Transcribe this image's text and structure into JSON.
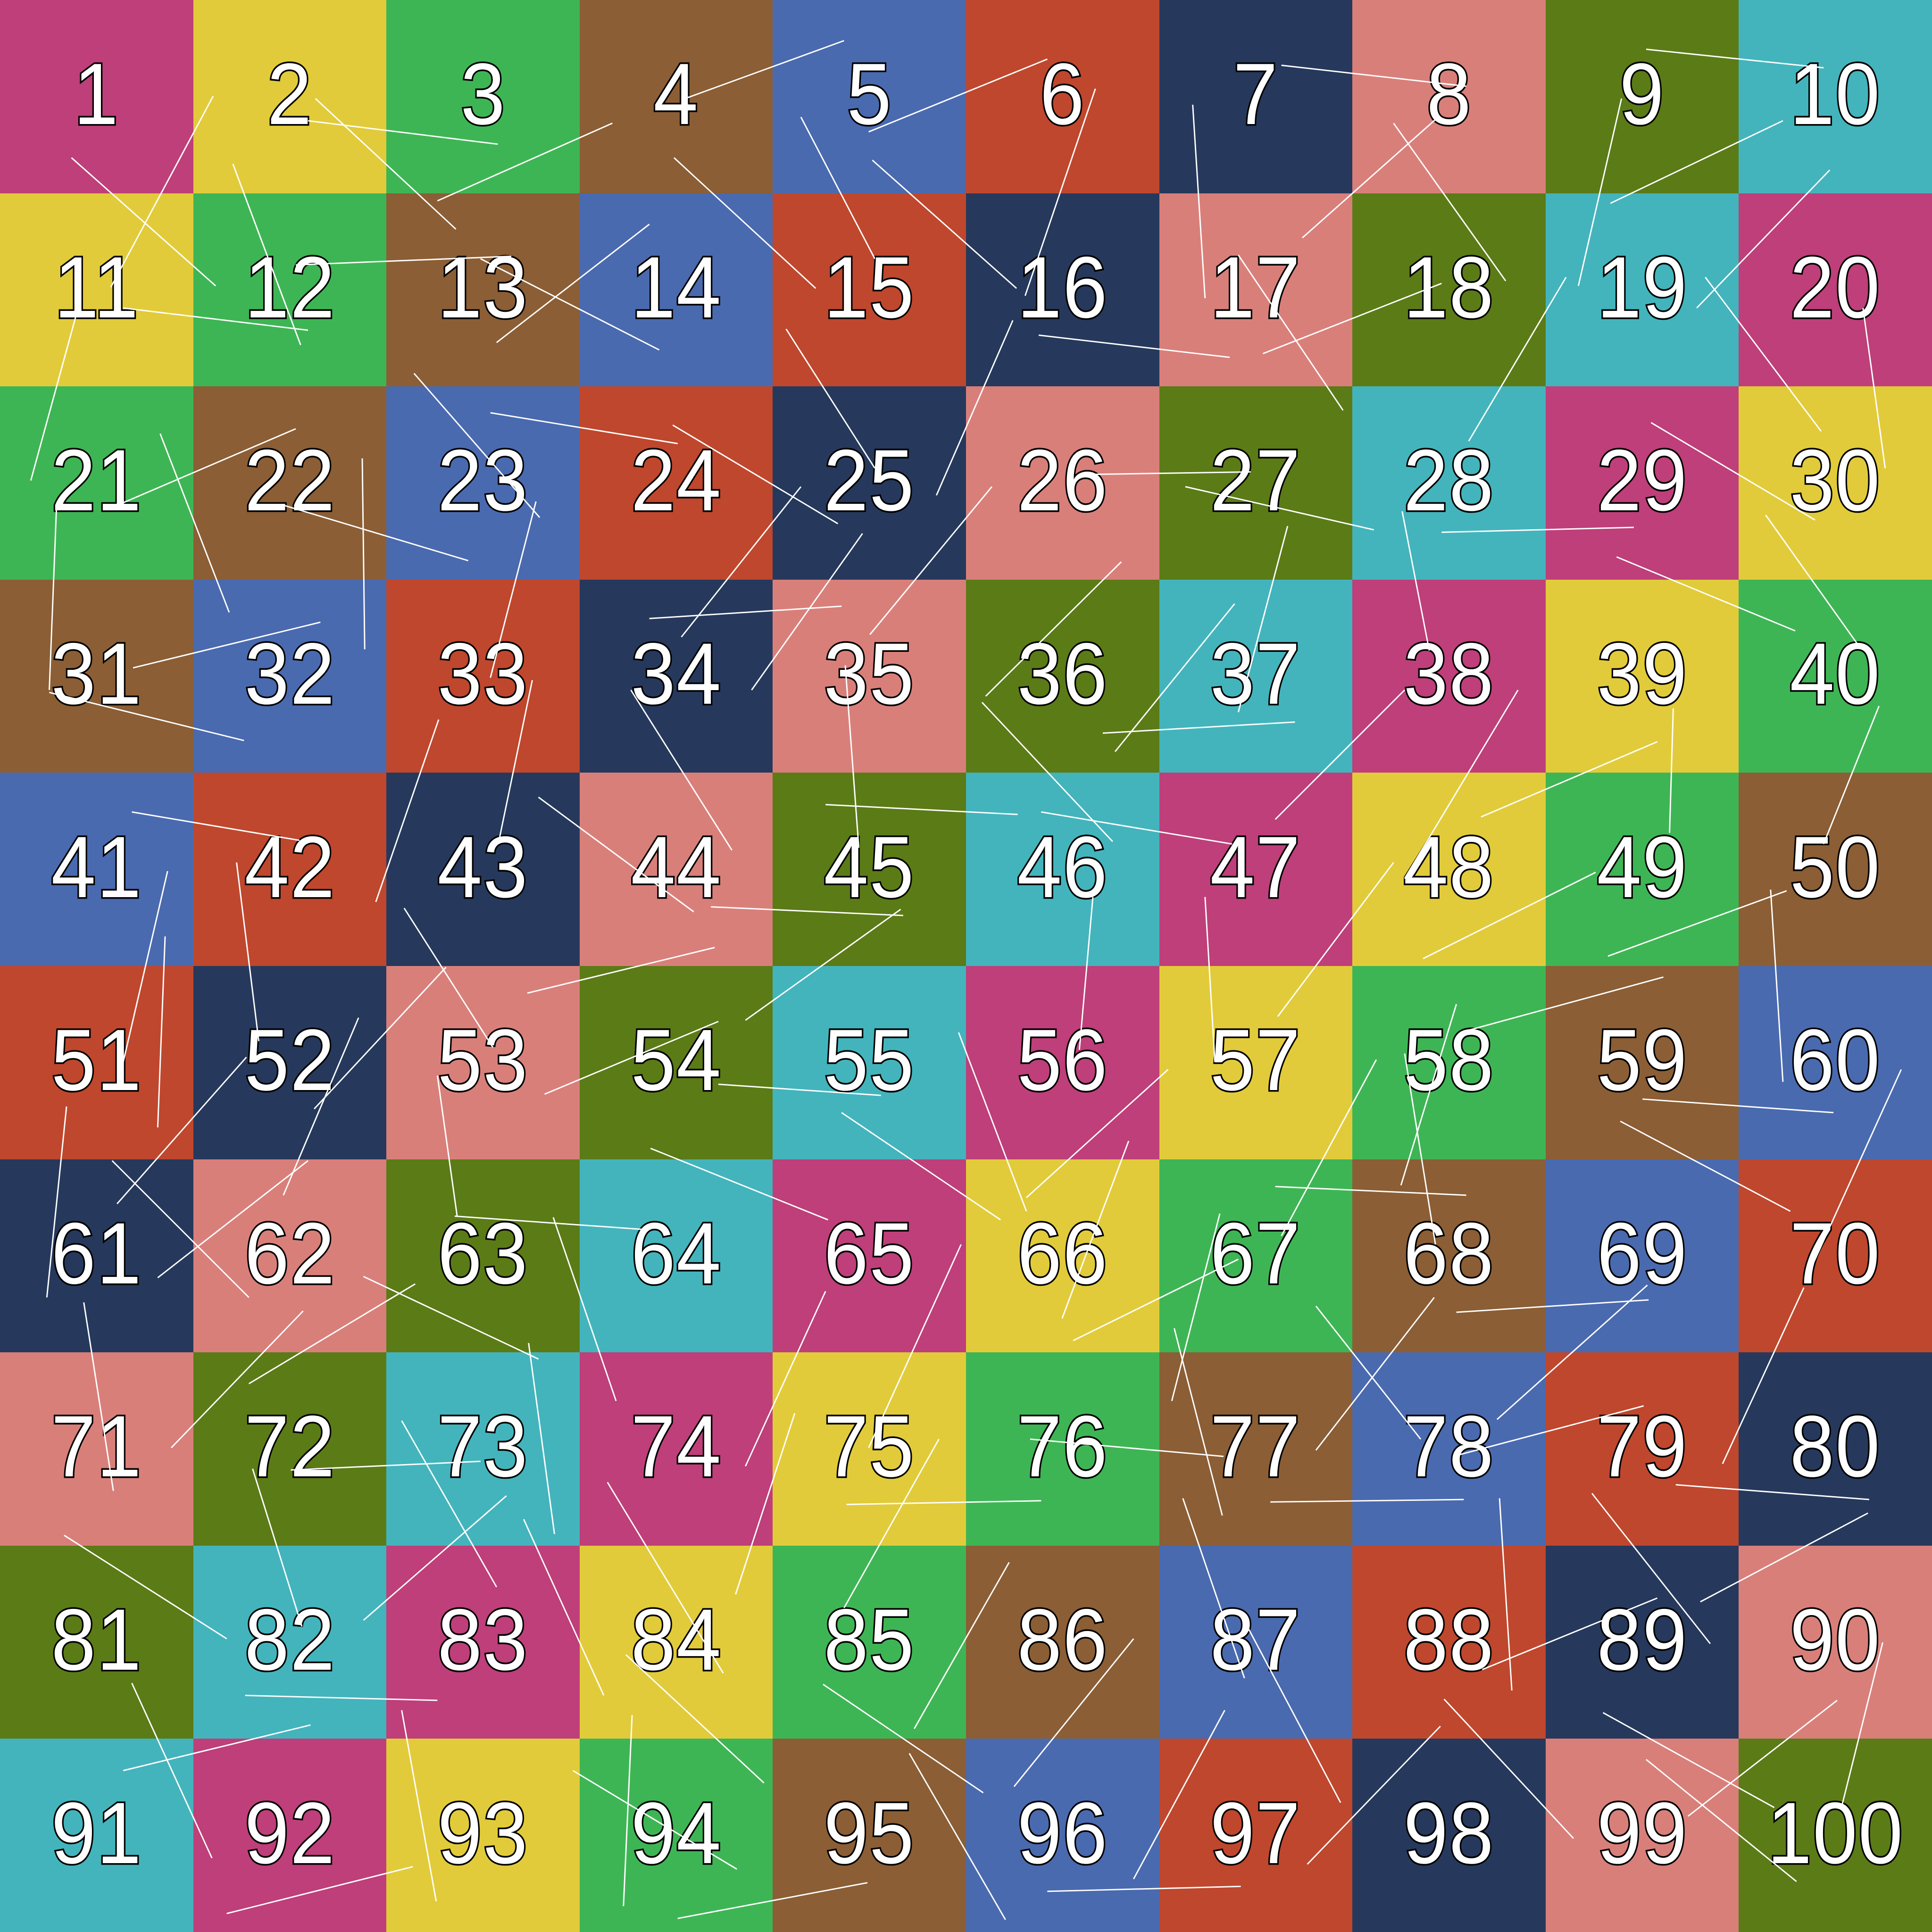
{
  "palette": {
    "magenta": "#BE3F79",
    "yellow": "#E2CB3A",
    "green": "#3EB554",
    "brown": "#8B5E35",
    "blue": "#4A6AAF",
    "red": "#BF472D",
    "navy": "#26395C",
    "salmon": "#D97F7A",
    "olive": "#5B7B17",
    "teal": "#43B4BC"
  },
  "line_color": "#FFFFFF",
  "cells": [
    {
      "label": "1",
      "color": "magenta"
    },
    {
      "label": "2",
      "color": "yellow"
    },
    {
      "label": "3",
      "color": "green"
    },
    {
      "label": "4",
      "color": "brown"
    },
    {
      "label": "5",
      "color": "blue"
    },
    {
      "label": "6",
      "color": "red"
    },
    {
      "label": "7",
      "color": "navy"
    },
    {
      "label": "8",
      "color": "salmon"
    },
    {
      "label": "9",
      "color": "olive"
    },
    {
      "label": "10",
      "color": "teal"
    },
    {
      "label": "11",
      "color": "yellow"
    },
    {
      "label": "12",
      "color": "green"
    },
    {
      "label": "13",
      "color": "brown"
    },
    {
      "label": "14",
      "color": "blue"
    },
    {
      "label": "15",
      "color": "red"
    },
    {
      "label": "16",
      "color": "navy"
    },
    {
      "label": "17",
      "color": "salmon"
    },
    {
      "label": "18",
      "color": "olive"
    },
    {
      "label": "19",
      "color": "teal"
    },
    {
      "label": "20",
      "color": "magenta"
    },
    {
      "label": "21",
      "color": "green"
    },
    {
      "label": "22",
      "color": "brown"
    },
    {
      "label": "23",
      "color": "blue"
    },
    {
      "label": "24",
      "color": "red"
    },
    {
      "label": "25",
      "color": "navy"
    },
    {
      "label": "26",
      "color": "salmon"
    },
    {
      "label": "27",
      "color": "olive"
    },
    {
      "label": "28",
      "color": "teal"
    },
    {
      "label": "29",
      "color": "magenta"
    },
    {
      "label": "30",
      "color": "yellow"
    },
    {
      "label": "31",
      "color": "brown"
    },
    {
      "label": "32",
      "color": "blue"
    },
    {
      "label": "33",
      "color": "red"
    },
    {
      "label": "34",
      "color": "navy"
    },
    {
      "label": "35",
      "color": "salmon"
    },
    {
      "label": "36",
      "color": "olive"
    },
    {
      "label": "37",
      "color": "teal"
    },
    {
      "label": "38",
      "color": "magenta"
    },
    {
      "label": "39",
      "color": "yellow"
    },
    {
      "label": "40",
      "color": "green"
    },
    {
      "label": "41",
      "color": "blue"
    },
    {
      "label": "42",
      "color": "red"
    },
    {
      "label": "43",
      "color": "navy"
    },
    {
      "label": "44",
      "color": "salmon"
    },
    {
      "label": "45",
      "color": "olive"
    },
    {
      "label": "46",
      "color": "teal"
    },
    {
      "label": "47",
      "color": "magenta"
    },
    {
      "label": "48",
      "color": "yellow"
    },
    {
      "label": "49",
      "color": "green"
    },
    {
      "label": "50",
      "color": "brown"
    },
    {
      "label": "51",
      "color": "red"
    },
    {
      "label": "52",
      "color": "navy"
    },
    {
      "label": "53",
      "color": "salmon"
    },
    {
      "label": "54",
      "color": "olive"
    },
    {
      "label": "55",
      "color": "teal"
    },
    {
      "label": "56",
      "color": "magenta"
    },
    {
      "label": "57",
      "color": "yellow"
    },
    {
      "label": "58",
      "color": "green"
    },
    {
      "label": "59",
      "color": "brown"
    },
    {
      "label": "60",
      "color": "blue"
    },
    {
      "label": "61",
      "color": "navy"
    },
    {
      "label": "62",
      "color": "salmon"
    },
    {
      "label": "63",
      "color": "olive"
    },
    {
      "label": "64",
      "color": "teal"
    },
    {
      "label": "65",
      "color": "magenta"
    },
    {
      "label": "66",
      "color": "yellow"
    },
    {
      "label": "67",
      "color": "green"
    },
    {
      "label": "68",
      "color": "brown"
    },
    {
      "label": "69",
      "color": "blue"
    },
    {
      "label": "70",
      "color": "red"
    },
    {
      "label": "71",
      "color": "salmon"
    },
    {
      "label": "72",
      "color": "olive"
    },
    {
      "label": "73",
      "color": "teal"
    },
    {
      "label": "74",
      "color": "magenta"
    },
    {
      "label": "75",
      "color": "yellow"
    },
    {
      "label": "76",
      "color": "green"
    },
    {
      "label": "77",
      "color": "brown"
    },
    {
      "label": "78",
      "color": "blue"
    },
    {
      "label": "79",
      "color": "red"
    },
    {
      "label": "80",
      "color": "navy"
    },
    {
      "label": "81",
      "color": "olive"
    },
    {
      "label": "82",
      "color": "teal"
    },
    {
      "label": "83",
      "color": "magenta"
    },
    {
      "label": "84",
      "color": "yellow"
    },
    {
      "label": "85",
      "color": "green"
    },
    {
      "label": "86",
      "color": "brown"
    },
    {
      "label": "87",
      "color": "blue"
    },
    {
      "label": "88",
      "color": "red"
    },
    {
      "label": "89",
      "color": "navy"
    },
    {
      "label": "90",
      "color": "salmon"
    },
    {
      "label": "91",
      "color": "teal"
    },
    {
      "label": "92",
      "color": "magenta"
    },
    {
      "label": "93",
      "color": "yellow"
    },
    {
      "label": "94",
      "color": "green"
    },
    {
      "label": "95",
      "color": "brown"
    },
    {
      "label": "96",
      "color": "blue"
    },
    {
      "label": "97",
      "color": "red"
    },
    {
      "label": "98",
      "color": "navy"
    },
    {
      "label": "99",
      "color": "salmon"
    },
    {
      "label": "100",
      "color": "olive"
    }
  ]
}
